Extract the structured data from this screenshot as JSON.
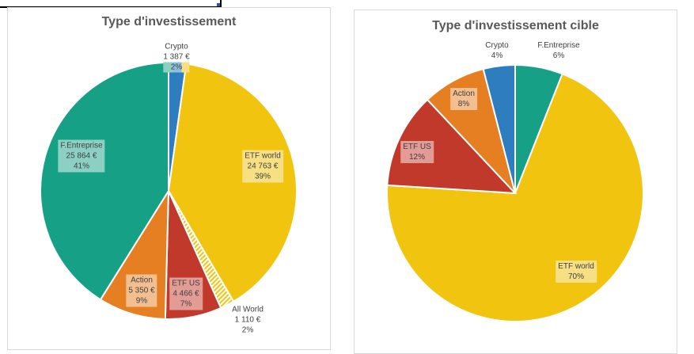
{
  "chart_data": [
    {
      "type": "pie",
      "title": "Type d'investissement",
      "slices": [
        {
          "label": "Crypto",
          "value": 1387,
          "value_text": "1 387 €",
          "percent": "2%",
          "color": "#2e7ebf",
          "label_bg": "#8fbfe0"
        },
        {
          "label": "ETF world",
          "value": 24763,
          "value_text": "24 763 €",
          "percent": "39%",
          "color": "#f1c40f",
          "label_bg": "#f7e084"
        },
        {
          "label": "All World",
          "value": 1110,
          "value_text": "1 110 €",
          "percent": "2%",
          "color": "#f1c40f",
          "pattern": "hatched"
        },
        {
          "label": "ETF US",
          "value": 4466,
          "value_text": "4 466 €",
          "percent": "7%",
          "color": "#c0392b",
          "label_bg": "#e29c95"
        },
        {
          "label": "Action",
          "value": 5350,
          "value_text": "5 350 €",
          "percent": "9%",
          "color": "#e67e22",
          "label_bg": "#f3bf90"
        },
        {
          "label": "F.Entreprise",
          "value": 25864,
          "value_text": "25 864 €",
          "percent": "41%",
          "color": "#16a085",
          "label_bg": "#8bd0c2"
        }
      ]
    },
    {
      "type": "pie",
      "title": "Type d'investissement cible",
      "slices": [
        {
          "label": "F.Entreprise",
          "value": 6,
          "percent": "6%",
          "color": "#16a085"
        },
        {
          "label": "ETF world",
          "value": 70,
          "percent": "70%",
          "color": "#f1c40f",
          "label_bg": "#f7e084"
        },
        {
          "label": "ETF US",
          "value": 12,
          "percent": "12%",
          "color": "#c0392b",
          "label_bg": "#e29c95"
        },
        {
          "label": "Action",
          "value": 8,
          "percent": "8%",
          "color": "#e67e22",
          "label_bg": "#f3bf90"
        },
        {
          "label": "Crypto",
          "value": 4,
          "percent": "4%",
          "color": "#2e7ebf"
        }
      ]
    }
  ]
}
